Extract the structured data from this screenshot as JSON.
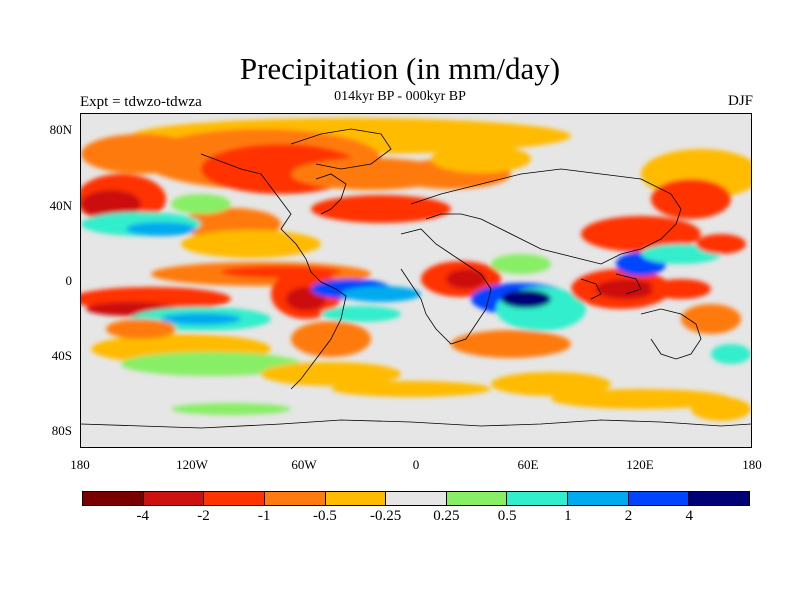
{
  "title": "Precipitation (in mm/day)",
  "subtitle": "014kyr BP - 000kyr BP",
  "experiment": "Expt = tdwzo-tdwza",
  "season": "DJF",
  "lat_labels": [
    "80N",
    "40N",
    "0",
    "40S",
    "80S"
  ],
  "lon_labels": [
    "180",
    "120W",
    "60W",
    "0",
    "60E",
    "120E",
    "180"
  ],
  "colorbar": {
    "colors": [
      "#7a0000",
      "#cc1111",
      "#ff3300",
      "#ff7a10",
      "#ffbb00",
      "#e6e6e6",
      "#88ee66",
      "#33eecc",
      "#00aaee",
      "#0044ff",
      "#000077"
    ],
    "labels": [
      "-4",
      "-2",
      "-1",
      "-0.5",
      "-0.25",
      "0.25",
      "0.5",
      "1",
      "2",
      "4"
    ]
  },
  "background_color": "#e6e6e6"
}
